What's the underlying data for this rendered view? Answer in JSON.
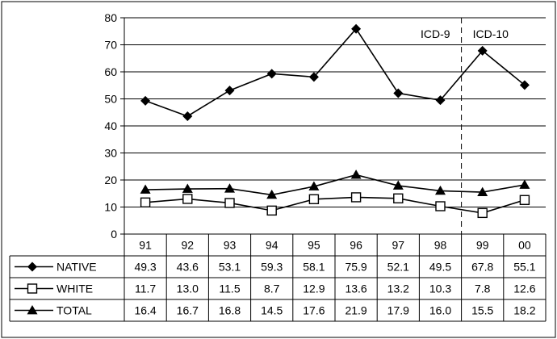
{
  "chart_data": {
    "type": "line",
    "title": "",
    "xlabel": "",
    "ylabel": "",
    "categories": [
      "91",
      "92",
      "93",
      "94",
      "95",
      "96",
      "97",
      "98",
      "99",
      "00"
    ],
    "yticks": [
      "0",
      "10",
      "20",
      "30",
      "40",
      "50",
      "60",
      "70",
      "80"
    ],
    "ylim": [
      0,
      80
    ],
    "grid": true,
    "legend_placement": "table-left",
    "series": [
      {
        "name": "NATIVE",
        "marker": "diamond",
        "values": [
          49.3,
          43.6,
          53.1,
          59.3,
          58.1,
          75.9,
          52.1,
          49.5,
          67.8,
          55.1
        ],
        "labels": [
          "49.3",
          "43.6",
          "53.1",
          "59.3",
          "58.1",
          "75.9",
          "52.1",
          "49.5",
          "67.8",
          "55.1"
        ]
      },
      {
        "name": "WHITE",
        "marker": "square-open",
        "values": [
          11.7,
          13.0,
          11.5,
          8.7,
          12.9,
          13.6,
          13.2,
          10.3,
          7.8,
          12.6
        ],
        "labels": [
          "11.7",
          "13.0",
          "11.5",
          "8.7",
          "12.9",
          "13.6",
          "13.2",
          "10.3",
          "7.8",
          "12.6"
        ]
      },
      {
        "name": "TOTAL",
        "marker": "triangle",
        "values": [
          16.4,
          16.7,
          16.8,
          14.5,
          17.6,
          21.9,
          17.9,
          16.0,
          15.5,
          18.2
        ],
        "labels": [
          "16.4",
          "16.7",
          "16.8",
          "14.5",
          "17.6",
          "21.9",
          "17.9",
          "16.0",
          "15.5",
          "18.2"
        ]
      }
    ],
    "annotations": [
      {
        "text": "ICD-9",
        "side": "left-of-divider"
      },
      {
        "text": "ICD-10",
        "side": "right-of-divider"
      }
    ],
    "divider_between": [
      "98",
      "99"
    ]
  }
}
